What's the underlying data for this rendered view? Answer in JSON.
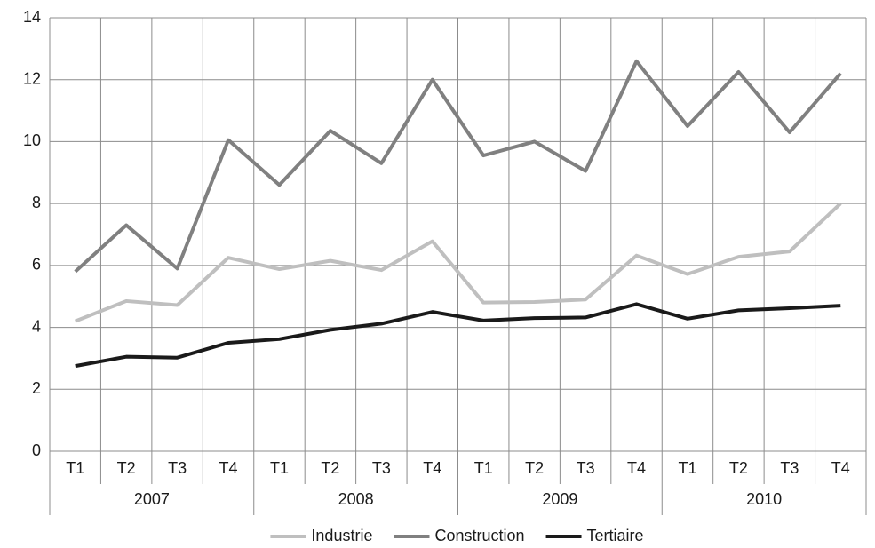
{
  "chart_data": {
    "type": "line",
    "categories": [
      "T1",
      "T2",
      "T3",
      "T4",
      "T1",
      "T2",
      "T3",
      "T4",
      "T1",
      "T2",
      "T3",
      "T4",
      "T1",
      "T2",
      "T3",
      "T4"
    ],
    "category_groups": [
      "2007",
      "2008",
      "2009",
      "2010"
    ],
    "series": [
      {
        "name": "Industrie",
        "color": "#bfbfbf",
        "values": [
          4.2,
          4.85,
          4.72,
          6.25,
          5.88,
          6.15,
          5.85,
          6.78,
          4.8,
          4.82,
          4.9,
          6.32,
          5.72,
          6.28,
          6.45,
          8.0
        ]
      },
      {
        "name": "Construction",
        "color": "#808080",
        "values": [
          5.8,
          7.3,
          5.9,
          10.05,
          8.6,
          10.35,
          9.3,
          12.0,
          9.55,
          10.0,
          9.05,
          12.6,
          10.5,
          12.25,
          10.3,
          12.2
        ]
      },
      {
        "name": "Tertiaire",
        "color": "#1a1a1a",
        "values": [
          2.75,
          3.05,
          3.02,
          3.5,
          3.62,
          3.92,
          4.12,
          4.5,
          4.22,
          4.3,
          4.32,
          4.75,
          4.28,
          4.55,
          4.62,
          4.7
        ]
      }
    ],
    "ylim": [
      0,
      14
    ],
    "yticks": [
      0,
      2,
      4,
      6,
      8,
      10,
      12,
      14
    ],
    "grid": true,
    "legend": "bottom"
  }
}
